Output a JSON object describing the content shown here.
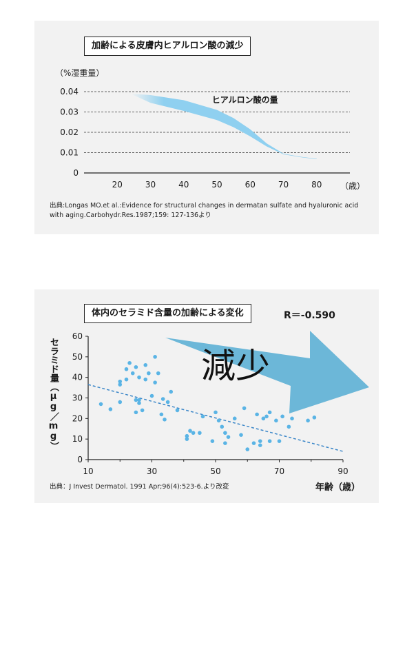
{
  "chart_data": [
    {
      "type": "area",
      "title": "加齢による皮膚内ヒアルロン酸の減少",
      "ylabel": "（%湿重量）",
      "xunit": "（歳）",
      "x_ticks": [
        "20",
        "30",
        "40",
        "50",
        "60",
        "70",
        "80"
      ],
      "y_ticks": [
        "0",
        "0.01",
        "0.02",
        "0.03",
        "0.04"
      ],
      "xlim": [
        10,
        90
      ],
      "ylim": [
        0,
        0.04
      ],
      "grid": "dashed horizontal",
      "band_label": "ヒアルロン酸の量",
      "series": [
        {
          "name": "ヒアルロン酸の量",
          "x": [
            24,
            30,
            40,
            50,
            55,
            60,
            65,
            70,
            75,
            80
          ],
          "upper": [
            0.039,
            0.0383,
            0.0358,
            0.031,
            0.027,
            0.0215,
            0.0145,
            0.0095,
            0.008,
            0.007
          ],
          "lower": [
            0.039,
            0.0345,
            0.0305,
            0.026,
            0.0225,
            0.018,
            0.013,
            0.0092,
            0.0078,
            0.0068
          ]
        }
      ],
      "colors": {
        "band": "#8fd0f0",
        "text": "#4aa8de"
      },
      "source": "出典:Longas MO.et al.:Evidence for structural changes in dermatan sulfate and hyaluronic acid with aging.Carbohydr.Res.1987;159: 127-136より"
    },
    {
      "type": "scatter",
      "title": "体内のセラミド含量の加齢による変化",
      "annotation_r": "R＝-0.590",
      "ylabel": "セラミド量（μg／mg）",
      "xlabel": "年齢（歳）",
      "arrow_label": "減少",
      "x_ticks": [
        "10",
        "30",
        "50",
        "70",
        "90"
      ],
      "y_ticks": [
        "0",
        "10",
        "20",
        "30",
        "40",
        "50",
        "60"
      ],
      "xlim": [
        10,
        90
      ],
      "ylim": [
        0,
        60
      ],
      "trend_line": {
        "x": [
          10,
          90
        ],
        "y": [
          36.5,
          4.0
        ]
      },
      "points": [
        [
          14,
          27
        ],
        [
          17,
          24.5
        ],
        [
          20,
          38
        ],
        [
          20,
          36.5
        ],
        [
          20,
          28
        ],
        [
          22,
          44
        ],
        [
          22,
          39
        ],
        [
          23,
          47
        ],
        [
          24,
          42
        ],
        [
          25,
          45
        ],
        [
          25,
          29
        ],
        [
          25,
          23
        ],
        [
          26,
          40
        ],
        [
          26,
          27.5
        ],
        [
          26,
          29
        ],
        [
          27,
          24
        ],
        [
          28,
          39
        ],
        [
          28,
          46
        ],
        [
          29,
          42
        ],
        [
          30,
          31
        ],
        [
          31,
          37.5
        ],
        [
          31,
          50
        ],
        [
          32,
          42
        ],
        [
          33,
          22
        ],
        [
          33.5,
          29.5
        ],
        [
          34,
          19.5
        ],
        [
          35,
          28
        ],
        [
          36,
          33
        ],
        [
          38,
          24
        ],
        [
          41,
          10
        ],
        [
          41,
          11.5
        ],
        [
          42,
          14
        ],
        [
          43,
          13
        ],
        [
          45,
          13
        ],
        [
          46,
          21
        ],
        [
          49,
          9
        ],
        [
          50,
          23
        ],
        [
          51,
          19
        ],
        [
          52,
          16
        ],
        [
          53,
          8
        ],
        [
          53,
          13
        ],
        [
          54,
          11
        ],
        [
          56,
          20
        ],
        [
          58,
          12
        ],
        [
          59,
          25
        ],
        [
          60,
          5
        ],
        [
          62,
          8
        ],
        [
          63,
          22
        ],
        [
          64,
          7
        ],
        [
          64,
          9
        ],
        [
          65,
          20
        ],
        [
          66,
          21
        ],
        [
          67,
          23
        ],
        [
          67,
          9
        ],
        [
          69,
          19
        ],
        [
          70,
          9
        ],
        [
          71,
          21
        ],
        [
          73,
          16
        ],
        [
          74,
          20
        ],
        [
          79,
          19
        ],
        [
          81,
          20.5
        ]
      ],
      "colors": {
        "points": "#5ab4e5",
        "trend": "#3a86c8",
        "arrow": "#6cb7d8"
      },
      "source": "出典：J Invest Dermatol. 1991 Apr;96(4):523-6.より改変"
    }
  ]
}
